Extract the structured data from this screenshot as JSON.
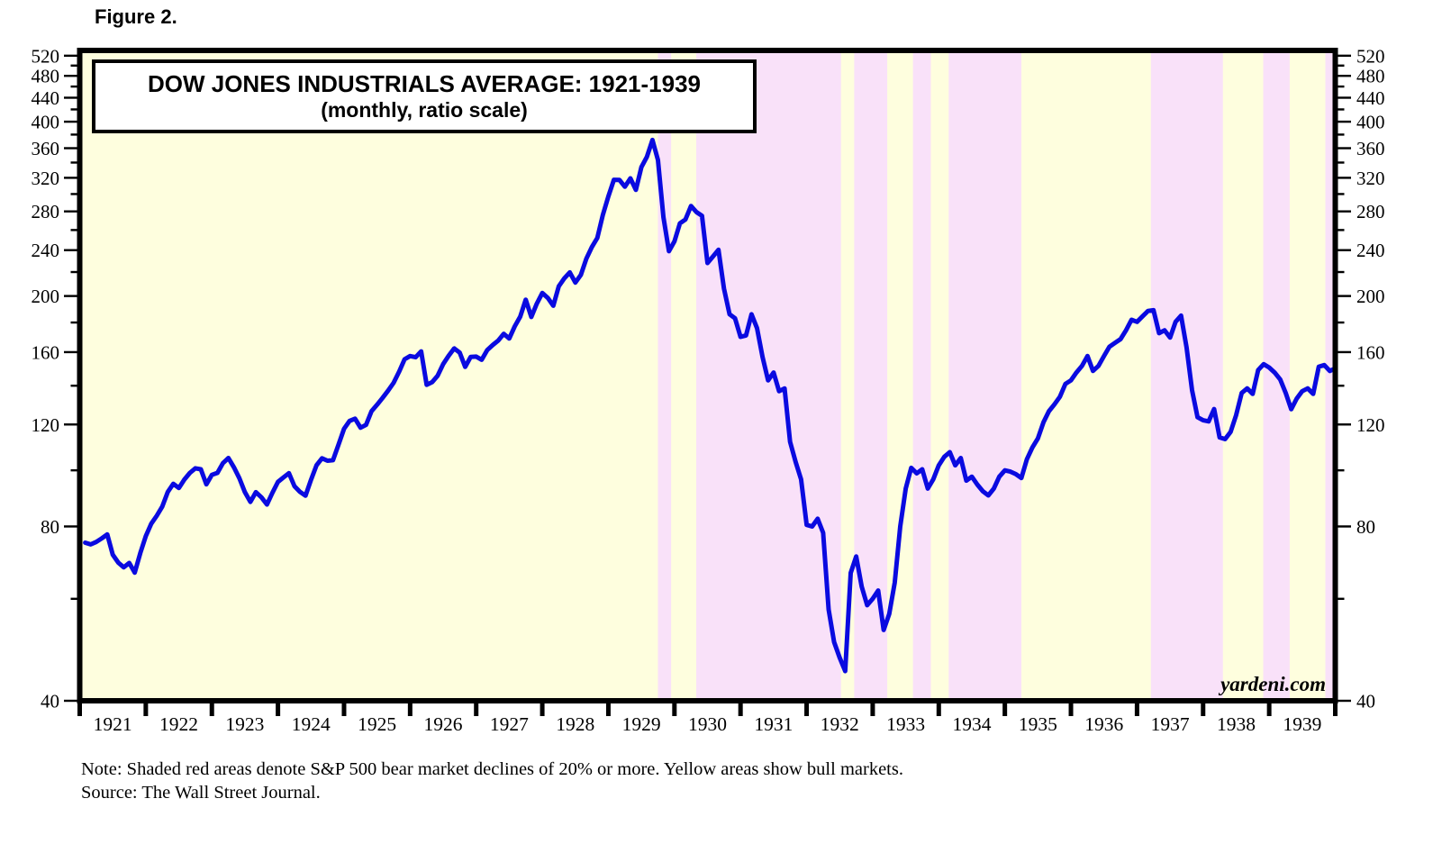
{
  "figure_label": "Figure 2.",
  "title": {
    "line1": "DOW JONES INDUSTRIALS AVERAGE: 1921-1939",
    "line2": "(monthly, ratio scale)"
  },
  "watermark": "yardeni.com",
  "note_line1": "Note: Shaded red areas denote S&P 500 bear market declines of 20% or more. Yellow areas show bull markets.",
  "note_line2": "Source: The Wall Street Journal.",
  "chart_data": {
    "type": "line",
    "title": "DOW JONES INDUSTRIALS AVERAGE: 1921-1939",
    "subtitle": "(monthly, ratio scale)",
    "y_scale": "log",
    "ylim": [
      40,
      531
    ],
    "x_start_year": 1921,
    "x_end_year": 1940,
    "frequency": "monthly",
    "y_ticks_major": [
      40,
      80,
      120,
      160,
      200,
      240,
      280,
      320,
      360,
      400,
      440,
      480,
      520
    ],
    "y_ticks_minor": [
      60,
      100,
      140,
      180,
      220,
      260,
      300,
      340,
      380,
      420,
      460,
      500
    ],
    "x_tick_years": [
      "1921",
      "1922",
      "1923",
      "1924",
      "1925",
      "1926",
      "1927",
      "1928",
      "1929",
      "1930",
      "1931",
      "1932",
      "1933",
      "1934",
      "1935",
      "1936",
      "1937",
      "1938",
      "1939"
    ],
    "legend": "none",
    "grid": "off",
    "bands_note": "pink = S&P 500 bear markets (decline >= 20%), yellow = bull markets; x values are decimal years",
    "bear_bands": [
      [
        1929.75,
        1929.95
      ],
      [
        1930.33,
        1932.52
      ],
      [
        1932.72,
        1933.22
      ],
      [
        1933.61,
        1933.88
      ],
      [
        1934.15,
        1935.25
      ],
      [
        1937.21,
        1938.3
      ],
      [
        1938.91,
        1939.31
      ],
      [
        1939.85,
        1940.0
      ]
    ],
    "colors": {
      "bull_band": "#FEFEDE",
      "bear_band": "#F9E1F9",
      "line": "#0A0AE0",
      "axis": "#000000"
    },
    "series": [
      {
        "name": "Dow Jones Industrials Average",
        "start_month": "1921-01",
        "values_by_year": [
          [
            75.0,
            74.5,
            75.2,
            76.3,
            77.5,
            71.5,
            69.3,
            68.0,
            69.2,
            66.6,
            72.0,
            77.0
          ],
          [
            80.9,
            83.5,
            86.6,
            91.8,
            94.8,
            93.2,
            96.4,
            99.0,
            100.8,
            100.4,
            94.6,
            98.2
          ],
          [
            99.0,
            102.9,
            105.0,
            101.2,
            96.9,
            91.7,
            88.2,
            91.7,
            89.8,
            87.3,
            91.5,
            95.5
          ],
          [
            97.2,
            98.9,
            93.9,
            91.8,
            90.4,
            96.3,
            102.0,
            104.9,
            103.9,
            104.1,
            110.8,
            118.0
          ],
          [
            121.7,
            122.8,
            118.5,
            119.8,
            126.5,
            129.8,
            133.4,
            137.3,
            141.6,
            148.0,
            155.5,
            157.5
          ],
          [
            156.8,
            160.5,
            140.5,
            142.0,
            145.7,
            152.5,
            157.7,
            162.4,
            159.7,
            150.9,
            157.0,
            157.2
          ],
          [
            155.2,
            161.3,
            164.6,
            167.5,
            172.1,
            168.9,
            177.3,
            184.3,
            197.1,
            184.0,
            194.0,
            202.4
          ],
          [
            198.5,
            192.4,
            207.9,
            214.5,
            219.7,
            211.0,
            217.5,
            232.0,
            243.0,
            252.0,
            276.0,
            297.0
          ],
          [
            317.5,
            317.4,
            308.9,
            319.3,
            305.0,
            333.8,
            347.7,
            372.0,
            343.5,
            273.5,
            239.0,
            248.5
          ],
          [
            267.1,
            271.1,
            286.1,
            279.2,
            275.1,
            228.0,
            234.0,
            240.4,
            206.0,
            186.0,
            183.0,
            170.0
          ],
          [
            171.0,
            186.0,
            176.0,
            157.0,
            143.0,
            147.5,
            137.0,
            138.5,
            112.0,
            103.5,
            96.5,
            80.5
          ],
          [
            80.0,
            82.5,
            78.0,
            57.5,
            50.5,
            47.5,
            45.0,
            66.5,
            71.0,
            63.0,
            58.5,
            60.0
          ],
          [
            62.0,
            53.0,
            56.5,
            64.0,
            80.0,
            93.0,
            101.0,
            98.8,
            100.4,
            93.0,
            96.5,
            102.0
          ],
          [
            105.5,
            107.5,
            102.0,
            105.0,
            96.0,
            97.5,
            94.5,
            92.0,
            90.5,
            93.0,
            97.5,
            100.0
          ],
          [
            99.5,
            98.5,
            97.0,
            104.5,
            109.5,
            113.5,
            121.0,
            126.5,
            130.0,
            134.0,
            141.0,
            143.0
          ],
          [
            147.5,
            151.5,
            157.5,
            148.5,
            151.5,
            157.5,
            163.5,
            166.0,
            168.5,
            174.5,
            182.0,
            180.5
          ],
          [
            184.5,
            188.5,
            189.0,
            172.5,
            174.5,
            169.5,
            180.5,
            185.0,
            163.0,
            137.5,
            123.5,
            122.0
          ],
          [
            121.5,
            127.6,
            114.0,
            113.2,
            116.5,
            124.5,
            136.0,
            138.5,
            135.5,
            149.0,
            152.5,
            150.5
          ],
          [
            147.5,
            143.5,
            136.0,
            127.5,
            133.0,
            137.0,
            138.5,
            135.5,
            151.0,
            152.0,
            148.5,
            150.0
          ]
        ]
      }
    ]
  }
}
